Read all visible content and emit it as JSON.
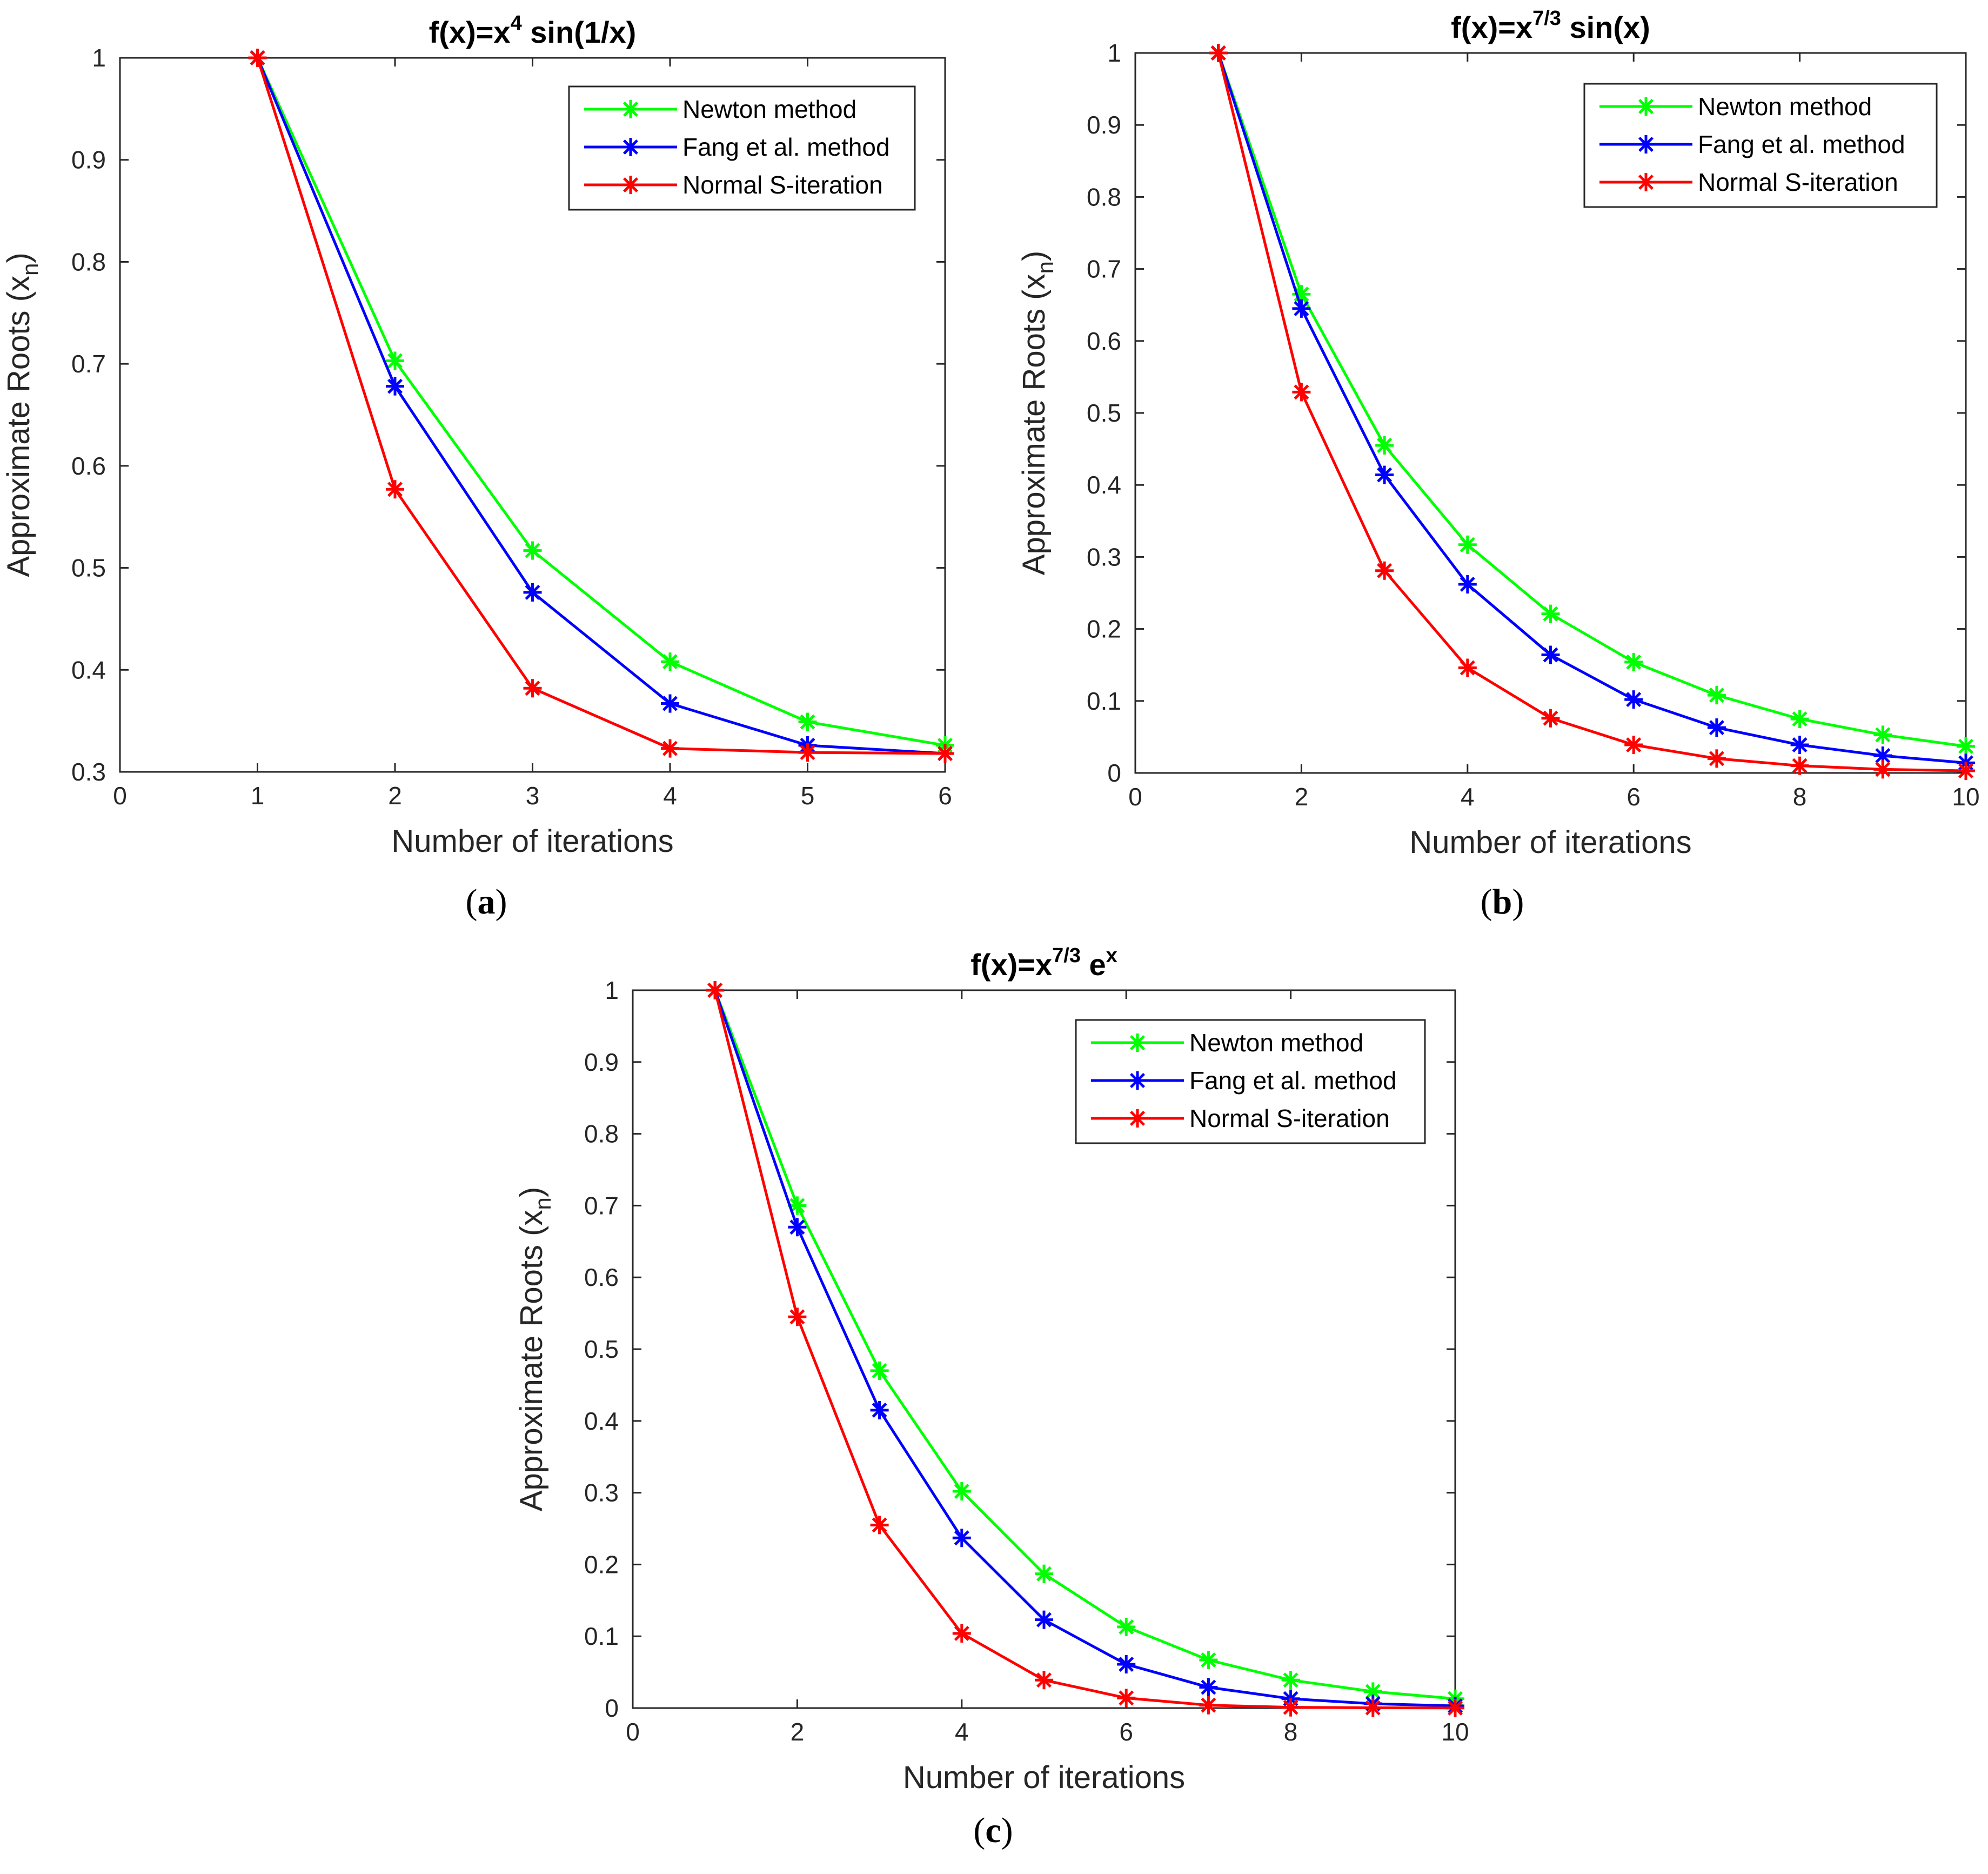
{
  "chart_data": [
    {
      "type": "line",
      "panel": "a",
      "caption": "(a)",
      "caption_letter": "a",
      "title": {
        "base": "f(x)=x",
        "sup": "4",
        "rest": " sin(1/x)"
      },
      "xlabel": "Number of iterations",
      "ylabel": "Approximate Roots (x",
      "ylabel_sub": "n",
      "ylabel_close": ")",
      "xlim": [
        0,
        6
      ],
      "ylim": [
        0.3,
        1
      ],
      "xticks": [
        0,
        1,
        2,
        3,
        4,
        5,
        6
      ],
      "yticks": [
        0.3,
        0.4,
        0.5,
        0.6,
        0.7,
        0.8,
        0.9,
        1
      ],
      "ytick_labels": [
        "0.3",
        "0.4",
        "0.5",
        "0.6",
        "0.7",
        "0.8",
        "0.9",
        "1"
      ],
      "legend_position": "top-right",
      "x": [
        1,
        2,
        3,
        4,
        5,
        6
      ],
      "series": [
        {
          "name": "Newton method",
          "color": "#00ff00",
          "values": [
            1.0,
            0.703,
            0.517,
            0.408,
            0.349,
            0.326
          ]
        },
        {
          "name": "Fang et al. method",
          "color": "#0000ff",
          "values": [
            1.0,
            0.678,
            0.476,
            0.367,
            0.326,
            0.318
          ]
        },
        {
          "name": "Normal S-iteration",
          "color": "#ff0000",
          "values": [
            1.0,
            0.577,
            0.382,
            0.323,
            0.319,
            0.318
          ]
        }
      ]
    },
    {
      "type": "line",
      "panel": "b",
      "caption": "(b)",
      "caption_letter": "b",
      "title": {
        "base": "f(x)=x",
        "sup": "7/3",
        "rest": " sin(x)"
      },
      "xlabel": "Number of iterations",
      "ylabel": "Approximate Roots (x",
      "ylabel_sub": "n",
      "ylabel_close": ")",
      "xlim": [
        0,
        10
      ],
      "ylim": [
        0,
        1
      ],
      "xticks": [
        0,
        2,
        4,
        6,
        8,
        10
      ],
      "yticks": [
        0,
        0.1,
        0.2,
        0.3,
        0.4,
        0.5,
        0.6,
        0.7,
        0.8,
        0.9,
        1
      ],
      "ytick_labels": [
        "0",
        "0.1",
        "0.2",
        "0.3",
        "0.4",
        "0.5",
        "0.6",
        "0.7",
        "0.8",
        "0.9",
        "1"
      ],
      "legend_position": "top-right",
      "x": [
        1,
        2,
        3,
        4,
        5,
        6,
        7,
        8,
        9,
        10
      ],
      "series": [
        {
          "name": "Newton method",
          "color": "#00ff00",
          "values": [
            1.0,
            0.665,
            0.455,
            0.317,
            0.221,
            0.154,
            0.108,
            0.075,
            0.053,
            0.037
          ]
        },
        {
          "name": "Fang et al. method",
          "color": "#0000ff",
          "values": [
            1.0,
            0.645,
            0.414,
            0.262,
            0.164,
            0.102,
            0.063,
            0.039,
            0.024,
            0.014
          ]
        },
        {
          "name": "Normal S-iteration",
          "color": "#ff0000",
          "values": [
            1.0,
            0.529,
            0.281,
            0.146,
            0.076,
            0.039,
            0.02,
            0.01,
            0.005,
            0.003
          ]
        }
      ]
    },
    {
      "type": "line",
      "panel": "c",
      "caption": "(c)",
      "caption_letter": "c",
      "title": {
        "base": "f(x)=x",
        "sup": "7/3",
        "rest": " e",
        "sup2": "x"
      },
      "xlabel": "Number of iterations",
      "ylabel": "Approximate Roots (x",
      "ylabel_sub": "n",
      "ylabel_close": ")",
      "xlim": [
        0,
        10
      ],
      "ylim": [
        0,
        1
      ],
      "xticks": [
        0,
        2,
        4,
        6,
        8,
        10
      ],
      "yticks": [
        0,
        0.1,
        0.2,
        0.3,
        0.4,
        0.5,
        0.6,
        0.7,
        0.8,
        0.9,
        1
      ],
      "ytick_labels": [
        "0",
        "0.1",
        "0.2",
        "0.3",
        "0.4",
        "0.5",
        "0.6",
        "0.7",
        "0.8",
        "0.9",
        "1"
      ],
      "legend_position": "top-right",
      "x": [
        1,
        2,
        3,
        4,
        5,
        6,
        7,
        8,
        9,
        10
      ],
      "series": [
        {
          "name": "Newton method",
          "color": "#00ff00",
          "values": [
            1.0,
            0.7,
            0.47,
            0.302,
            0.187,
            0.113,
            0.067,
            0.039,
            0.023,
            0.013
          ]
        },
        {
          "name": "Fang et al. method",
          "color": "#0000ff",
          "values": [
            1.0,
            0.67,
            0.415,
            0.237,
            0.123,
            0.061,
            0.029,
            0.013,
            0.006,
            0.003
          ]
        },
        {
          "name": "Normal S-iteration",
          "color": "#ff0000",
          "values": [
            1.0,
            0.545,
            0.255,
            0.104,
            0.039,
            0.014,
            0.004,
            0.001,
            0.0004,
            0.0001
          ]
        }
      ]
    }
  ]
}
